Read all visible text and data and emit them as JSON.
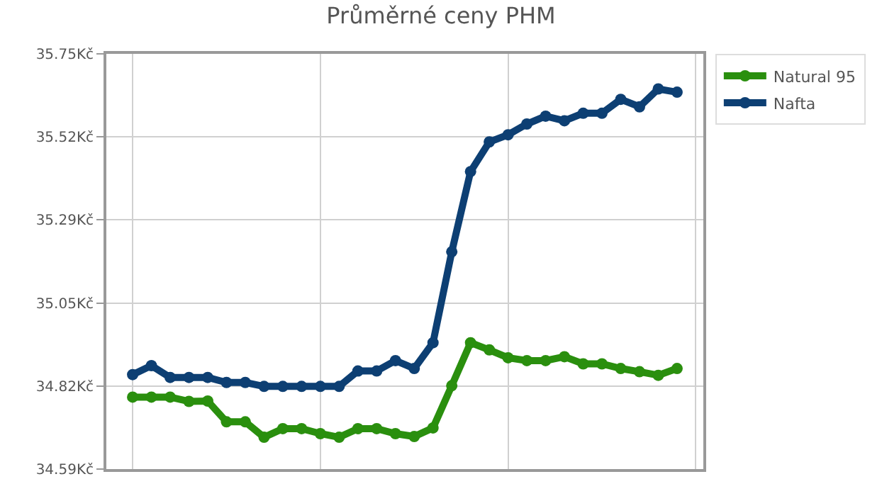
{
  "chart_data": {
    "type": "line",
    "title": "Průměrné ceny PHM",
    "categories": [
      null,
      null,
      null,
      null,
      null,
      null,
      null,
      null,
      null,
      null,
      null,
      null,
      null,
      null,
      null,
      null,
      null,
      null,
      null,
      null,
      null,
      null,
      null,
      null,
      null,
      null,
      null,
      null,
      null,
      null
    ],
    "series": [
      {
        "name": "Natural 95",
        "color": "#2a8f0e",
        "values": [
          34.791,
          34.791,
          34.791,
          34.779,
          34.78,
          34.722,
          34.722,
          34.679,
          34.703,
          34.703,
          34.689,
          34.679,
          34.703,
          34.703,
          34.689,
          34.681,
          34.705,
          34.823,
          34.943,
          34.923,
          34.901,
          34.893,
          34.893,
          34.904,
          34.884,
          34.884,
          34.871,
          34.862,
          34.852,
          34.871
        ]
      },
      {
        "name": "Nafta",
        "color": "#0d3f73",
        "values": [
          34.854,
          34.879,
          34.846,
          34.846,
          34.846,
          34.832,
          34.832,
          34.821,
          34.821,
          34.821,
          34.821,
          34.821,
          34.864,
          34.864,
          34.893,
          34.871,
          34.943,
          35.197,
          35.421,
          35.504,
          35.524,
          35.554,
          35.576,
          35.563,
          35.584,
          35.584,
          35.623,
          35.602,
          35.652,
          35.643
        ]
      }
    ],
    "ylim": [
      34.59,
      35.75
    ],
    "yticks": [
      {
        "value": 34.59,
        "label": "34.59Kč"
      },
      {
        "value": 34.822,
        "label": "34.82Kč"
      },
      {
        "value": 35.054,
        "label": "35.05Kč"
      },
      {
        "value": 35.286,
        "label": "35.29Kč"
      },
      {
        "value": 35.518,
        "label": "35.52Kč"
      },
      {
        "value": 35.75,
        "label": "35.75Kč"
      }
    ],
    "tick_labels": "y",
    "grid": true,
    "legend": "top right",
    "marker": "circle",
    "line_style": "solid"
  }
}
